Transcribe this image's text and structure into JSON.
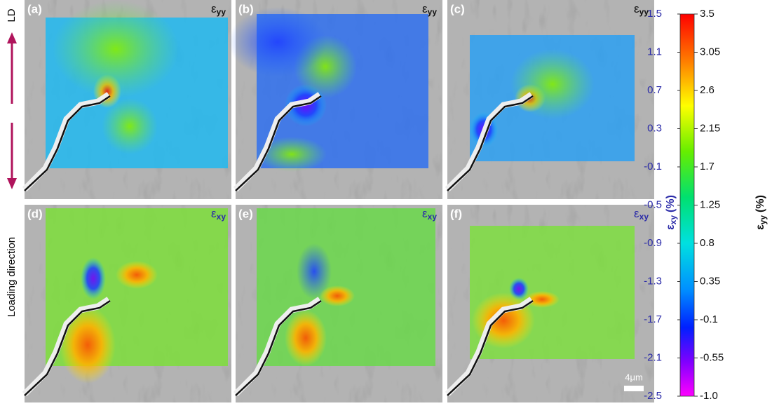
{
  "side": {
    "top_label": "LD",
    "label": "Loading direction"
  },
  "panels": [
    {
      "label": "(a)",
      "symbol": "ε",
      "subscript": "yy"
    },
    {
      "label": "(b)",
      "symbol": "ε",
      "subscript": "yy"
    },
    {
      "label": "(c)",
      "symbol": "ε",
      "subscript": "yy"
    },
    {
      "label": "(d)",
      "symbol": "ε",
      "subscript": "xy"
    },
    {
      "label": "(e)",
      "symbol": "ε",
      "subscript": "xy"
    },
    {
      "label": "(f)",
      "symbol": "ε",
      "subscript": "xy"
    }
  ],
  "scale_bar": "4μm",
  "colorbar": {
    "left": {
      "symbol": "ε",
      "subscript": "xy",
      "unit": "(%)",
      "lim": [
        -2.5,
        1.5
      ],
      "ticks": [
        1.5,
        1.1,
        0.7,
        0.3,
        -0.1,
        -0.5,
        -0.9,
        -1.3,
        -1.7,
        -2.1,
        -2.5
      ]
    },
    "right": {
      "symbol": "ε",
      "subscript": "yy",
      "unit": "(%)",
      "lim": [
        -1,
        3.5
      ],
      "ticks": [
        3.5,
        3.05,
        2.6,
        2.15,
        1.7,
        1.25,
        0.8,
        0.35,
        -0.1,
        -0.55,
        {
          "value": -1,
          "label": "-1.0"
        }
      ]
    }
  }
}
